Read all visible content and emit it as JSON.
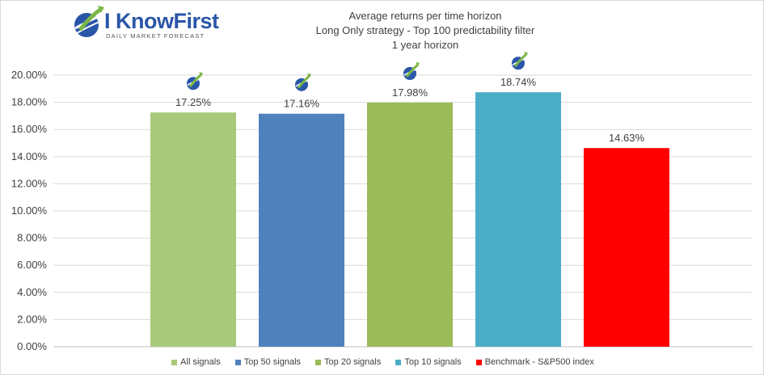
{
  "logo": {
    "name": "I KnowFirst",
    "tagline": "DAILY MARKET FORECAST",
    "colors": {
      "blue": "#2a56a8",
      "green": "#7ab648"
    }
  },
  "chart_data": {
    "type": "bar",
    "title": "Average returns per time horizon",
    "subtitle": "Long Only strategy - Top 100 predictability filter",
    "subtitle2": "1 year horizon",
    "xlabel": "",
    "ylabel": "",
    "ylim": [
      0,
      20
    ],
    "yticks": [
      "0.00%",
      "2.00%",
      "4.00%",
      "6.00%",
      "8.00%",
      "10.00%",
      "12.00%",
      "14.00%",
      "16.00%",
      "18.00%",
      "20.00%"
    ],
    "grid": true,
    "legend_position": "bottom",
    "series": [
      {
        "name": "All signals",
        "value": 17.25,
        "label": "17.25%",
        "color": "#a9c97a",
        "logo": true
      },
      {
        "name": "Top 50 signals",
        "value": 17.16,
        "label": "17.16%",
        "color": "#4f81bd",
        "logo": true
      },
      {
        "name": "Top 20 signals",
        "value": 17.98,
        "label": "17.98%",
        "color": "#9bbb59",
        "logo": true
      },
      {
        "name": "Top 10 signals",
        "value": 18.74,
        "label": "18.74%",
        "color": "#4bacc6",
        "logo": true
      },
      {
        "name": "Benchmark - S&P500 index",
        "value": 14.63,
        "label": "14.63%",
        "color": "#ff0000",
        "logo": false
      }
    ]
  }
}
